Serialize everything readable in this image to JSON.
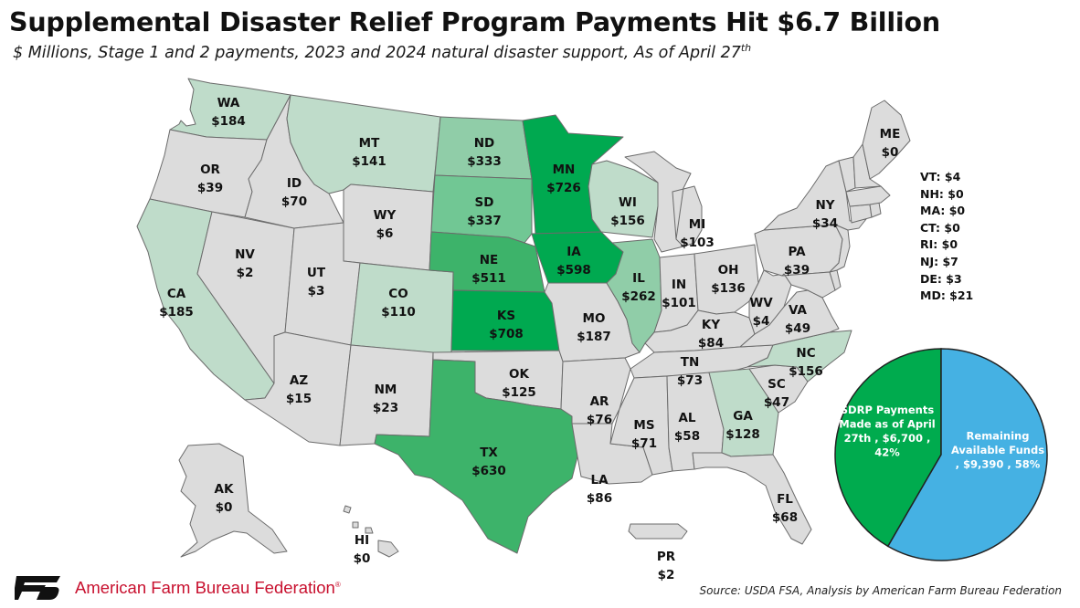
{
  "title": "Supplemental Disaster Relief Program Payments Hit $6.7 Billion",
  "subtitle_main": "$ Millions, Stage 1 and 2 payments, 2023 and 2024 natural disaster support, As of April 27",
  "subtitle_sup": "th",
  "colors": {
    "gray": "#dcdcdc",
    "light_green": "#bfdcca",
    "mid_green": "#90cda8",
    "green": "#71c794",
    "strong_green": "#3db36a",
    "dark_green": "#00a950",
    "pie_green": "#00ab4e",
    "pie_blue": "#45b1e3",
    "brand_red": "#c8102e",
    "border": "#6b6b6b"
  },
  "states": [
    {
      "abbr": "WA",
      "value": "$184"
    },
    {
      "abbr": "OR",
      "value": "$39"
    },
    {
      "abbr": "CA",
      "value": "$185"
    },
    {
      "abbr": "NV",
      "value": "$2"
    },
    {
      "abbr": "ID",
      "value": "$70"
    },
    {
      "abbr": "MT",
      "value": "$141"
    },
    {
      "abbr": "WY",
      "value": "$6"
    },
    {
      "abbr": "UT",
      "value": "$3"
    },
    {
      "abbr": "AZ",
      "value": "$15"
    },
    {
      "abbr": "CO",
      "value": "$110"
    },
    {
      "abbr": "NM",
      "value": "$23"
    },
    {
      "abbr": "ND",
      "value": "$333"
    },
    {
      "abbr": "SD",
      "value": "$337"
    },
    {
      "abbr": "NE",
      "value": "$511"
    },
    {
      "abbr": "KS",
      "value": "$708"
    },
    {
      "abbr": "OK",
      "value": "$125"
    },
    {
      "abbr": "TX",
      "value": "$630"
    },
    {
      "abbr": "MN",
      "value": "$726"
    },
    {
      "abbr": "IA",
      "value": "$598"
    },
    {
      "abbr": "MO",
      "value": "$187"
    },
    {
      "abbr": "AR",
      "value": "$76"
    },
    {
      "abbr": "LA",
      "value": "$86"
    },
    {
      "abbr": "WI",
      "value": "$156"
    },
    {
      "abbr": "IL",
      "value": "$262"
    },
    {
      "abbr": "MI",
      "value": "$103"
    },
    {
      "abbr": "IN",
      "value": "$101"
    },
    {
      "abbr": "OH",
      "value": "$136"
    },
    {
      "abbr": "KY",
      "value": "$84"
    },
    {
      "abbr": "TN",
      "value": "$73"
    },
    {
      "abbr": "MS",
      "value": "$71"
    },
    {
      "abbr": "AL",
      "value": "$58"
    },
    {
      "abbr": "GA",
      "value": "$128"
    },
    {
      "abbr": "FL",
      "value": "$68"
    },
    {
      "abbr": "SC",
      "value": "$47"
    },
    {
      "abbr": "NC",
      "value": "$156"
    },
    {
      "abbr": "VA",
      "value": "$49"
    },
    {
      "abbr": "WV",
      "value": "$4"
    },
    {
      "abbr": "PA",
      "value": "$39"
    },
    {
      "abbr": "NY",
      "value": "$34"
    },
    {
      "abbr": "ME",
      "value": "$0"
    },
    {
      "abbr": "AK",
      "value": "$0"
    },
    {
      "abbr": "HI",
      "value": "$0"
    },
    {
      "abbr": "PR",
      "value": "$2"
    }
  ],
  "small_states": [
    {
      "text": "VT: $4"
    },
    {
      "text": "NH: $0"
    },
    {
      "text": "MA: $0"
    },
    {
      "text": "CT: $0"
    },
    {
      "text": "RI: $0"
    },
    {
      "text": "NJ: $7"
    },
    {
      "text": "DE: $3"
    },
    {
      "text": "MD: $21"
    }
  ],
  "pie": {
    "slices": [
      {
        "name": "SDRP Payments Made as of April 27th",
        "value": 6700,
        "percent": 42,
        "label_lines": [
          "SDRP Payments",
          "Made as of April",
          "27th , $6,700 ,",
          "42%"
        ]
      },
      {
        "name": "Remaining Available Funds",
        "value": 9390,
        "percent": 58,
        "label_lines": [
          "Remaining",
          "Available Funds",
          ", $9,390 , 58%"
        ]
      }
    ]
  },
  "brand": "American Farm Bureau Federation",
  "brand_mark": "®",
  "source": "Source: USDA FSA, Analysis by American Farm Bureau Federation"
}
